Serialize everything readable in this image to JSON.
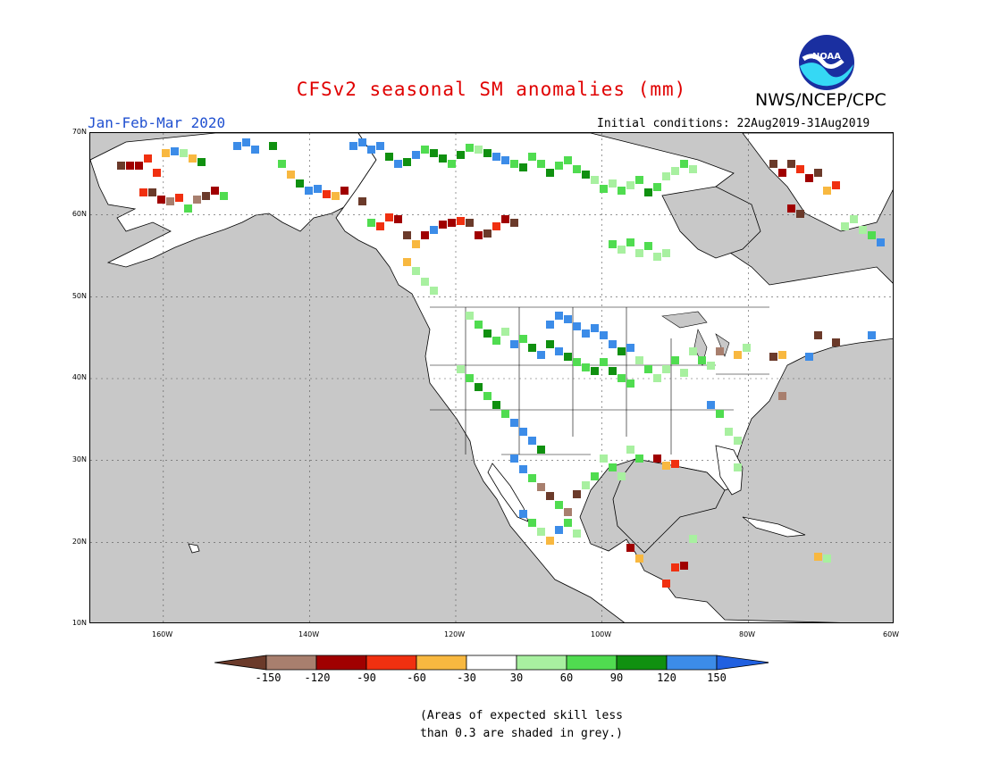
{
  "title": "CFSv2 seasonal SM anomalies (mm)",
  "org": "NWS/NCEP/CPC",
  "logo_text": "NOAA",
  "period": "Jan-Feb-Mar 2020",
  "initial_conditions": "Initial conditions: 22Aug2019-31Aug2019",
  "lat_labels": [
    "70N",
    "60N",
    "50N",
    "40N",
    "30N",
    "20N",
    "10N"
  ],
  "lon_labels": [
    "160W",
    "140W",
    "120W",
    "100W",
    "80W",
    "60W"
  ],
  "colorbar": {
    "labels": [
      "-150",
      "-120",
      "-90",
      "-60",
      "-30",
      "30",
      "60",
      "90",
      "120",
      "150"
    ],
    "colors": [
      "#6b3a2a",
      "#a87f6e",
      "#a00000",
      "#f03010",
      "#f8b840",
      "#ffffff",
      "#a8f0a0",
      "#50dc50",
      "#109010",
      "#3c8ce8",
      "#2060e0"
    ]
  },
  "note_line1": "(Areas of expected skill less",
  "note_line2": "than 0.3 are shaded in grey.)",
  "colors": {
    "ocean_grey": "#c8c8c8",
    "land_white": "#ffffff",
    "title_red": "#e00000",
    "period_blue": "#2050d0"
  }
}
